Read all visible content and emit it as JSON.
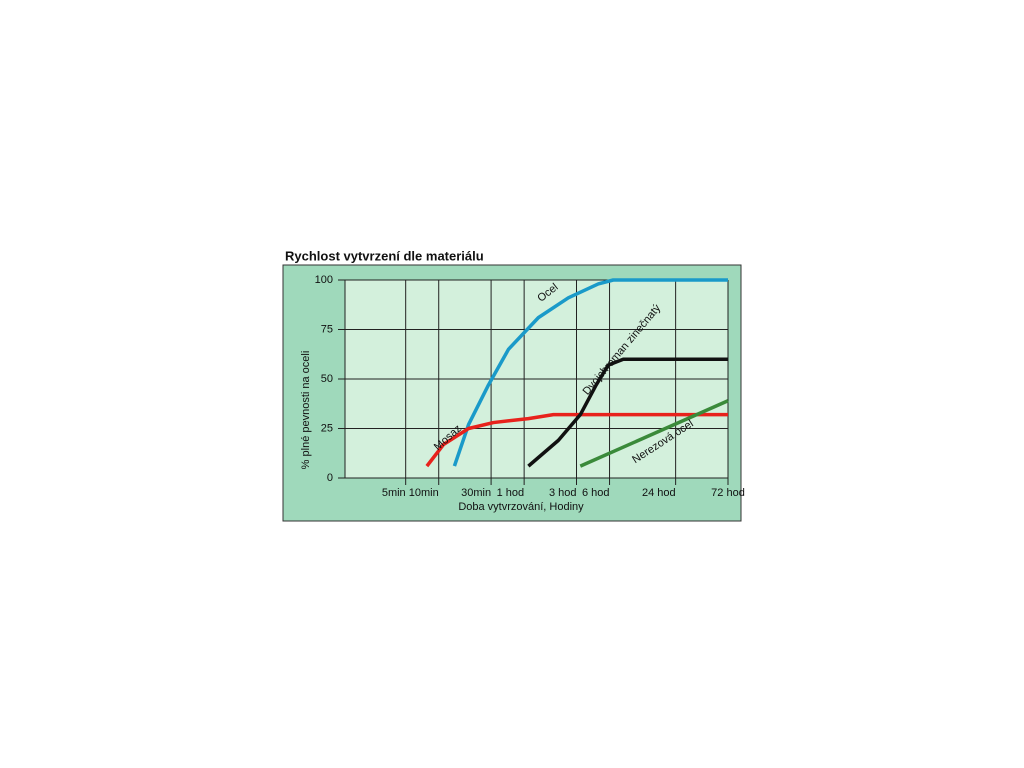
{
  "chart_data": {
    "type": "line",
    "title": "Rychlost vytvrzení dle materiálu",
    "y_label": "% plné pevnosti na oceli",
    "x_label": "Doba vytvrzování, Hodiny",
    "xscale": "log",
    "xlim": [
      1.4,
      4320
    ],
    "xticks": [
      {
        "value": 5,
        "label": "5min"
      },
      {
        "value": 10,
        "label": "10min"
      },
      {
        "value": 30,
        "label": "30min"
      },
      {
        "value": 60,
        "label": "1 hod"
      },
      {
        "value": 180,
        "label": "3 hod"
      },
      {
        "value": 360,
        "label": "6 hod"
      },
      {
        "value": 1440,
        "label": "24 hod"
      },
      {
        "value": 4320,
        "label": "72 hod"
      }
    ],
    "ylim": [
      0,
      100
    ],
    "yticks": [
      0,
      25,
      50,
      75,
      100
    ],
    "grid": true,
    "series": [
      {
        "name": "Ocel",
        "color": "#1a9ac9",
        "x": [
          13.9,
          18.7,
          28.4,
          43.2,
          80.9,
          151.7,
          284,
          389,
          4320
        ],
        "values": [
          6,
          27,
          47,
          65,
          81,
          91,
          98,
          100,
          100
        ]
      },
      {
        "name": "Mosaz",
        "color": "#e8221c",
        "x": [
          7.8,
          11.1,
          18.7,
          31.5,
          65.6,
          110.7,
          4320
        ],
        "values": [
          6,
          17,
          25,
          28,
          30,
          32,
          32
        ]
      },
      {
        "name": "Dvojchroman zinečnatý",
        "color": "#111111",
        "x": [
          65.6,
          123,
          195,
          272,
          350,
          480,
          4320
        ],
        "values": [
          6,
          19,
          32,
          47,
          57,
          60,
          60
        ]
      },
      {
        "name": "Nerezová ocel",
        "color": "#3a8a3a",
        "x": [
          195,
          4320
        ],
        "values": [
          6,
          39
        ]
      }
    ]
  }
}
